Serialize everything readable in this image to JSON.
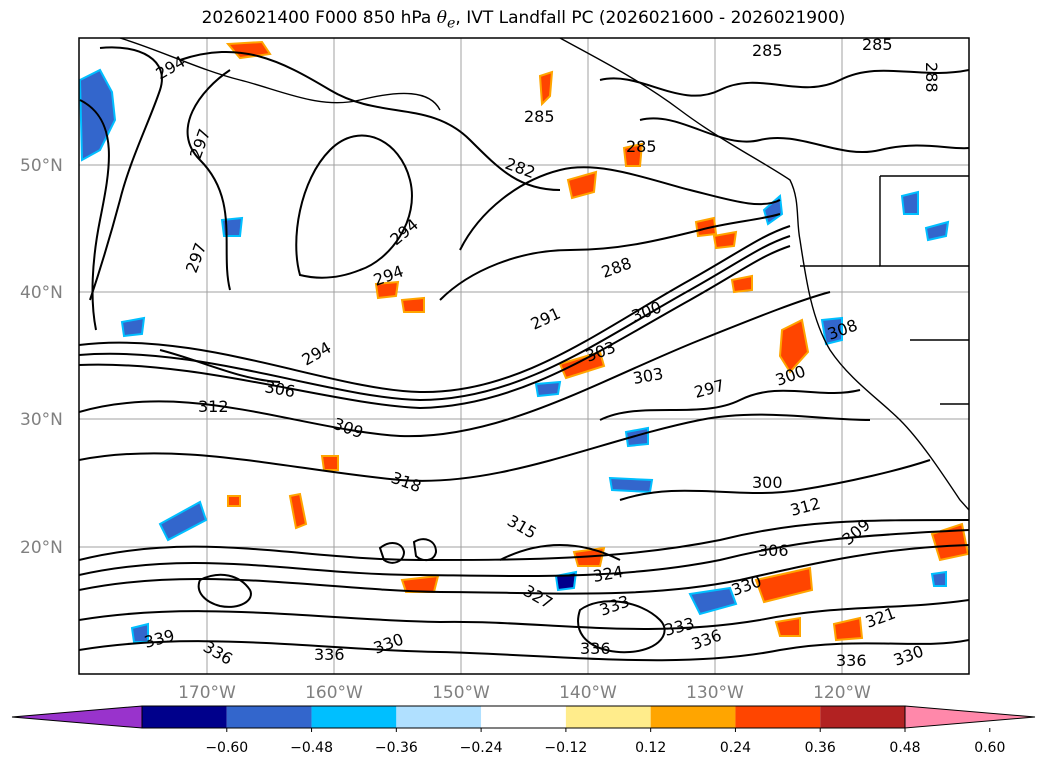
{
  "title": {
    "prefix": "2026021400 F000 850 hPa ",
    "symbol": "θ",
    "subscript": "e",
    "suffix": ", IVT Landfall PC (2026021600 - 2026021900)"
  },
  "map": {
    "lat_labels": [
      "50°N",
      "40°N",
      "30°N",
      "20°N"
    ],
    "lon_labels": [
      "170°W",
      "160°W",
      "150°W",
      "140°W",
      "130°W",
      "120°W"
    ],
    "contour_labels": [
      "285",
      "285",
      "288",
      "294",
      "297",
      "282",
      "285",
      "285",
      "294",
      "297",
      "294",
      "288",
      "291",
      "294",
      "300",
      "303",
      "306",
      "303",
      "297",
      "300",
      "312",
      "309",
      "308",
      "318",
      "300",
      "312",
      "315",
      "324",
      "306",
      "309",
      "327",
      "333",
      "330",
      "321",
      "333",
      "336",
      "330",
      "336",
      "339",
      "336",
      "336",
      "330",
      "336"
    ]
  },
  "colorbar": {
    "colors": [
      "#9933cc",
      "#00008b",
      "#3366cc",
      "#00bfff",
      "#b0e0ff",
      "#ffffff",
      "#ffec8b",
      "#ffa500",
      "#ff4500",
      "#b22222",
      "#ff88aa"
    ],
    "ticks": [
      "−0.60",
      "−0.48",
      "−0.36",
      "−0.24",
      "−0.12",
      "0.12",
      "0.24",
      "0.36",
      "0.48",
      "0.60"
    ]
  }
}
